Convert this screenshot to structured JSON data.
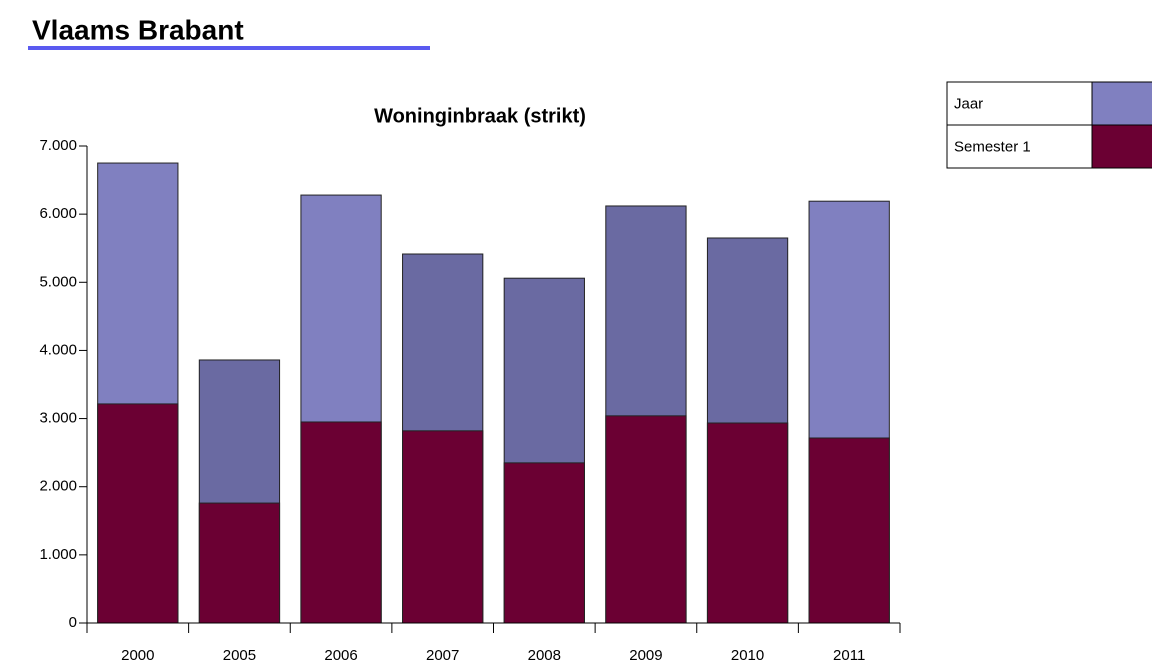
{
  "header": {
    "title": "Vlaams Brabant"
  },
  "chart_data": {
    "type": "bar",
    "title": "Woninginbraak (strikt)",
    "categories": [
      "2000",
      "2005",
      "2006",
      "2007",
      "2008",
      "2009",
      "2010",
      "2011"
    ],
    "series": [
      {
        "name": "Jaar",
        "color": "#8080c0",
        "colors": [
          "#8080c0",
          "#6a6aa2",
          "#8080c0",
          "#6a6aa2",
          "#6a6aa2",
          "#6a6aa2",
          "#6a6aa2",
          "#8080c0"
        ],
        "values": [
          6750,
          3860,
          6280,
          5415,
          5060,
          6120,
          5650,
          6190
        ]
      },
      {
        "name": "Semester 1",
        "color": "#6b0033",
        "values": [
          3215,
          1760,
          2950,
          2820,
          2350,
          3040,
          2935,
          2715
        ]
      }
    ],
    "overlap": true,
    "ylim": [
      0,
      7000
    ],
    "yticks": [
      0,
      {
        "value": 1000,
        "label": "1.000"
      },
      {
        "value": 2000,
        "label": "2.000"
      },
      {
        "value": 3000,
        "label": "3.000"
      },
      {
        "value": 4000,
        "label": "4.000"
      },
      {
        "value": 5000,
        "label": "5.000"
      },
      {
        "value": 6000,
        "label": "6.000"
      },
      {
        "value": 7000,
        "label": "7.000"
      }
    ],
    "legend": "top-right"
  }
}
